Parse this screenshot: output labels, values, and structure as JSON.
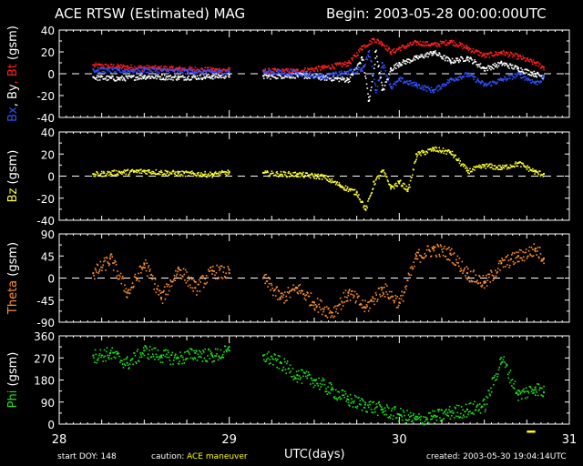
{
  "header": {
    "title": "ACE RTSW (Estimated) MAG",
    "begin": "Begin: 2003-05-28 00:00:00UTC"
  },
  "footer": {
    "start_doy": "start DOY:  148",
    "caution_label": "caution:",
    "caution_value": "ACE maneuver",
    "created": "created: 2003-05-30 19:04:14UTC"
  },
  "colors": {
    "bx": "#3050ff",
    "by": "#ffffff",
    "bt": "#ff2020",
    "bz": "#ffff30",
    "theta": "#ff9030",
    "phi": "#20e020",
    "maneuver": "#ffff00"
  },
  "chart_data": {
    "type": "scatter",
    "xlabel": "UTC(days)",
    "xlim": [
      28,
      31
    ],
    "x_ticks": [
      "28",
      "29",
      "30",
      "31"
    ],
    "data_gap": [
      29.02,
      29.2
    ],
    "maneuver_marker": {
      "x": [
        30.75,
        30.8
      ],
      "color": "#ffff00"
    },
    "panels": [
      {
        "id": "btotal",
        "ylabel": [
          "Bx",
          "By",
          "Bt",
          "(gsm)"
        ],
        "ylabel_colors": [
          "#3050ff",
          "#ffffff",
          "#ff2020",
          "#ffffff"
        ],
        "ylim": [
          -40,
          40
        ],
        "yticks": [
          "40",
          "20",
          "0",
          "-20",
          "-40"
        ],
        "series": [
          {
            "key": "bt",
            "color": "#ff2020",
            "x": [
              28.2,
              28.35,
              28.5,
              28.7,
              28.9,
              29.0,
              29.2,
              29.4,
              29.55,
              29.7,
              29.78,
              29.85,
              29.9,
              29.95,
              30.0,
              30.1,
              30.2,
              30.3,
              30.4,
              30.5,
              30.6,
              30.7,
              30.8,
              30.85
            ],
            "y": [
              8,
              7,
              6,
              5,
              4,
              4,
              3,
              3,
              6,
              10,
              25,
              32,
              28,
              20,
              24,
              29,
              27,
              30,
              24,
              17,
              20,
              16,
              10,
              6
            ]
          },
          {
            "key": "by",
            "color": "#ffffff",
            "x": [
              28.2,
              28.35,
              28.5,
              28.7,
              28.9,
              29.0,
              29.2,
              29.4,
              29.55,
              29.7,
              29.78,
              29.82,
              29.86,
              29.9,
              29.95,
              30.0,
              30.1,
              30.2,
              30.3,
              30.4,
              30.5,
              30.6,
              30.7,
              30.8,
              30.85
            ],
            "y": [
              -3,
              -4,
              -2,
              -3,
              -2,
              -1,
              -2,
              -1,
              -3,
              -5,
              15,
              -25,
              20,
              -15,
              5,
              10,
              15,
              20,
              12,
              15,
              5,
              10,
              5,
              0,
              -2
            ]
          },
          {
            "key": "bx",
            "color": "#3050ff",
            "x": [
              28.2,
              28.35,
              28.5,
              28.7,
              28.9,
              29.0,
              29.2,
              29.4,
              29.55,
              29.7,
              29.78,
              29.82,
              29.86,
              29.9,
              29.95,
              30.0,
              30.1,
              30.2,
              30.3,
              30.4,
              30.5,
              30.6,
              30.7,
              30.8,
              30.85
            ],
            "y": [
              4,
              3,
              4,
              3,
              2,
              2,
              2,
              1,
              -2,
              2,
              5,
              20,
              -15,
              10,
              -12,
              -5,
              -10,
              -15,
              -5,
              0,
              -10,
              -5,
              0,
              -8,
              -3
            ]
          }
        ]
      },
      {
        "id": "bz",
        "ylabel": [
          "Bz",
          "(gsm)"
        ],
        "ylabel_colors": [
          "#ffff30",
          "#ffffff"
        ],
        "ylim": [
          -40,
          40
        ],
        "yticks": [
          "40",
          "20",
          "0",
          "-20",
          "-40"
        ],
        "series": [
          {
            "key": "bz",
            "color": "#ffff30",
            "x": [
              28.2,
              28.35,
              28.5,
              28.7,
              28.9,
              29.0,
              29.2,
              29.4,
              29.55,
              29.65,
              29.75,
              29.8,
              29.85,
              29.9,
              29.95,
              30.0,
              30.05,
              30.1,
              30.2,
              30.3,
              30.4,
              30.5,
              30.6,
              30.7,
              30.8,
              30.85
            ],
            "y": [
              2,
              4,
              5,
              3,
              2,
              4,
              3,
              2,
              0,
              -8,
              -15,
              -30,
              -5,
              5,
              -10,
              -5,
              -12,
              20,
              25,
              22,
              5,
              10,
              8,
              12,
              4,
              2
            ]
          }
        ]
      },
      {
        "id": "theta",
        "ylabel": [
          "Theta",
          "(gsm)"
        ],
        "ylabel_colors": [
          "#ff9030",
          "#ffffff"
        ],
        "ylim": [
          -90,
          90
        ],
        "yticks": [
          "90",
          "45",
          "0",
          "-45",
          "-90"
        ],
        "series": [
          {
            "key": "theta",
            "color": "#ff9030",
            "x": [
              28.2,
              28.3,
              28.4,
              28.5,
              28.6,
              28.7,
              28.8,
              28.9,
              29.0,
              29.2,
              29.3,
              29.4,
              29.5,
              29.6,
              29.7,
              29.8,
              29.9,
              30.0,
              30.1,
              30.2,
              30.3,
              30.4,
              30.5,
              30.6,
              30.7,
              30.8,
              30.85
            ],
            "y": [
              10,
              40,
              -30,
              30,
              -40,
              20,
              -20,
              15,
              10,
              0,
              -40,
              -20,
              -50,
              -70,
              -30,
              -60,
              -20,
              -50,
              45,
              60,
              50,
              10,
              -10,
              30,
              45,
              60,
              40
            ]
          }
        ]
      },
      {
        "id": "phi",
        "ylabel": [
          "Phi",
          "(gsm)"
        ],
        "ylabel_colors": [
          "#20e020",
          "#ffffff"
        ],
        "ylim": [
          0,
          360
        ],
        "yticks": [
          "360",
          "270",
          "180",
          "90",
          "0"
        ],
        "series": [
          {
            "key": "phi",
            "color": "#20e020",
            "x": [
              28.2,
              28.3,
              28.4,
              28.5,
              28.6,
              28.7,
              28.8,
              28.9,
              29.0,
              29.2,
              29.3,
              29.4,
              29.5,
              29.6,
              29.7,
              29.8,
              29.9,
              30.0,
              30.1,
              30.2,
              30.3,
              30.4,
              30.5,
              30.6,
              30.7,
              30.8,
              30.85
            ],
            "y": [
              280,
              290,
              250,
              300,
              280,
              270,
              290,
              280,
              300,
              280,
              250,
              200,
              180,
              140,
              100,
              80,
              60,
              40,
              20,
              30,
              50,
              60,
              80,
              270,
              120,
              150,
              130
            ]
          }
        ]
      }
    ]
  }
}
